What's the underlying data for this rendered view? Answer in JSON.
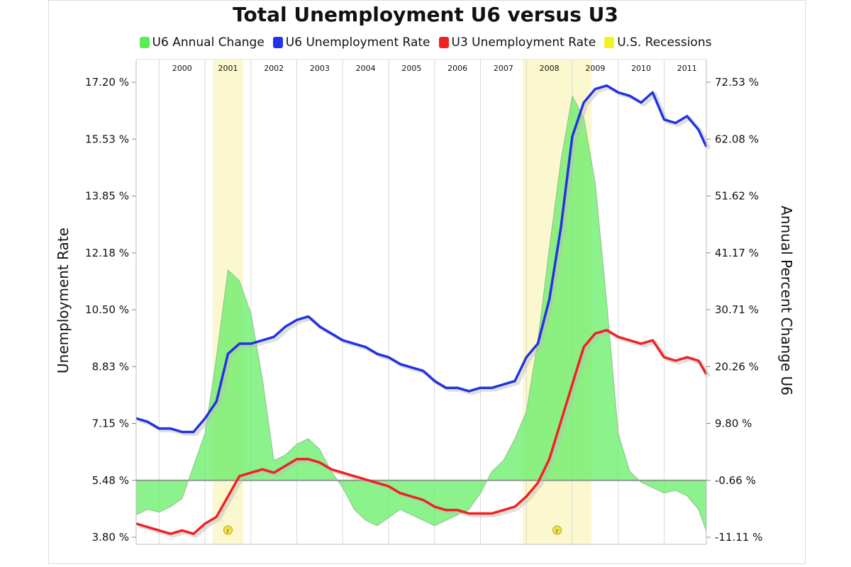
{
  "chart_data": {
    "type": "line",
    "title": "Total Unemployment U6 versus U3",
    "ylabel_left": "Unemployment Rate",
    "ylabel_right": "Annual Percent Change U6",
    "left_ticks": [
      "3.80 %",
      "5.48 %",
      "7.15 %",
      "8.83 %",
      "10.50 %",
      "12.18 %",
      "13.85 %",
      "15.53 %",
      "17.20 %"
    ],
    "right_ticks": [
      "-11.11 %",
      "-0.66 %",
      "9.80 %",
      "20.26 %",
      "30.71 %",
      "41.17 %",
      "51.62 %",
      "62.08 %",
      "72.53 %"
    ],
    "year_labels": [
      "2000",
      "2001",
      "2002",
      "2003",
      "2004",
      "2005",
      "2006",
      "2007",
      "2008",
      "2009",
      "2010",
      "2011"
    ],
    "ylim_left": [
      3.8,
      17.2
    ],
    "ylim_right": [
      -11.11,
      72.53
    ],
    "x_start": 1999.5,
    "x_end": 2011.92,
    "grid": true,
    "legend_position": "top",
    "recession_markers": [
      "r",
      "r"
    ],
    "recessions": [
      [
        2001.17,
        2001.83
      ],
      [
        2007.92,
        2009.42
      ]
    ],
    "series": [
      {
        "name": "U6 Annual Change",
        "type": "area",
        "color": "#66ee66",
        "axis": "right",
        "x": [
          1999.5,
          1999.75,
          2000.0,
          2000.25,
          2000.5,
          2000.75,
          2001.0,
          2001.25,
          2001.5,
          2001.75,
          2002.0,
          2002.25,
          2002.5,
          2002.75,
          2003.0,
          2003.25,
          2003.5,
          2003.75,
          2004.0,
          2004.25,
          2004.5,
          2004.75,
          2005.0,
          2005.25,
          2005.5,
          2005.75,
          2006.0,
          2006.25,
          2006.5,
          2006.75,
          2007.0,
          2007.25,
          2007.5,
          2007.75,
          2008.0,
          2008.25,
          2008.5,
          2008.75,
          2009.0,
          2009.25,
          2009.5,
          2009.75,
          2010.0,
          2010.25,
          2010.5,
          2010.75,
          2011.0,
          2011.25,
          2011.5,
          2011.75,
          2011.92
        ],
        "values": [
          -7.0,
          -6.0,
          -6.5,
          -5.5,
          -4.0,
          2.0,
          8.0,
          22.0,
          38.0,
          36.0,
          30.0,
          18.0,
          3.0,
          4.0,
          6.0,
          7.0,
          5.0,
          1.0,
          -2.0,
          -6.0,
          -8.0,
          -9.0,
          -7.5,
          -6.0,
          -7.0,
          -8.0,
          -9.0,
          -8.0,
          -7.0,
          -6.0,
          -3.0,
          1.0,
          3.0,
          7.0,
          12.0,
          25.0,
          42.0,
          58.0,
          70.0,
          66.0,
          54.0,
          32.0,
          8.0,
          1.0,
          -1.0,
          -2.0,
          -3.0,
          -2.5,
          -3.5,
          -6.0,
          -10.0
        ]
      },
      {
        "name": "U6 Unemployment Rate",
        "type": "line",
        "color": "#2233dd",
        "axis": "left",
        "x": [
          1999.5,
          1999.75,
          2000.0,
          2000.25,
          2000.5,
          2000.75,
          2001.0,
          2001.25,
          2001.5,
          2001.75,
          2002.0,
          2002.25,
          2002.5,
          2002.75,
          2003.0,
          2003.25,
          2003.5,
          2003.75,
          2004.0,
          2004.25,
          2004.5,
          2004.75,
          2005.0,
          2005.25,
          2005.5,
          2005.75,
          2006.0,
          2006.25,
          2006.5,
          2006.75,
          2007.0,
          2007.25,
          2007.5,
          2007.75,
          2008.0,
          2008.25,
          2008.5,
          2008.75,
          2009.0,
          2009.25,
          2009.5,
          2009.75,
          2010.0,
          2010.25,
          2010.5,
          2010.75,
          2011.0,
          2011.25,
          2011.5,
          2011.75,
          2011.92
        ],
        "values": [
          7.3,
          7.2,
          7.0,
          7.0,
          6.9,
          6.9,
          7.3,
          7.8,
          9.2,
          9.5,
          9.5,
          9.6,
          9.7,
          10.0,
          10.2,
          10.3,
          10.0,
          9.8,
          9.6,
          9.5,
          9.4,
          9.2,
          9.1,
          8.9,
          8.8,
          8.7,
          8.4,
          8.2,
          8.2,
          8.1,
          8.2,
          8.2,
          8.3,
          8.4,
          9.1,
          9.5,
          10.8,
          12.9,
          15.6,
          16.6,
          17.0,
          17.1,
          16.9,
          16.8,
          16.6,
          16.9,
          16.1,
          16.0,
          16.2,
          15.8,
          15.3
        ]
      },
      {
        "name": "U3 Unemployment Rate",
        "type": "line",
        "color": "#ee2222",
        "axis": "left",
        "x": [
          1999.5,
          1999.75,
          2000.0,
          2000.25,
          2000.5,
          2000.75,
          2001.0,
          2001.25,
          2001.5,
          2001.75,
          2002.0,
          2002.25,
          2002.5,
          2002.75,
          2003.0,
          2003.25,
          2003.5,
          2003.75,
          2004.0,
          2004.25,
          2004.5,
          2004.75,
          2005.0,
          2005.25,
          2005.5,
          2005.75,
          2006.0,
          2006.25,
          2006.5,
          2006.75,
          2007.0,
          2007.25,
          2007.5,
          2007.75,
          2008.0,
          2008.25,
          2008.5,
          2008.75,
          2009.0,
          2009.25,
          2009.5,
          2009.75,
          2010.0,
          2010.25,
          2010.5,
          2010.75,
          2011.0,
          2011.25,
          2011.5,
          2011.75,
          2011.92
        ],
        "values": [
          4.2,
          4.1,
          4.0,
          3.9,
          4.0,
          3.9,
          4.2,
          4.4,
          5.0,
          5.6,
          5.7,
          5.8,
          5.7,
          5.9,
          6.1,
          6.1,
          6.0,
          5.8,
          5.7,
          5.6,
          5.5,
          5.4,
          5.3,
          5.1,
          5.0,
          4.9,
          4.7,
          4.6,
          4.6,
          4.5,
          4.5,
          4.5,
          4.6,
          4.7,
          5.0,
          5.4,
          6.1,
          7.2,
          8.3,
          9.4,
          9.8,
          9.9,
          9.7,
          9.6,
          9.5,
          9.6,
          9.1,
          9.0,
          9.1,
          9.0,
          8.6
        ]
      },
      {
        "name": "U.S. Recessions",
        "type": "band",
        "color": "#eeee22"
      }
    ]
  }
}
